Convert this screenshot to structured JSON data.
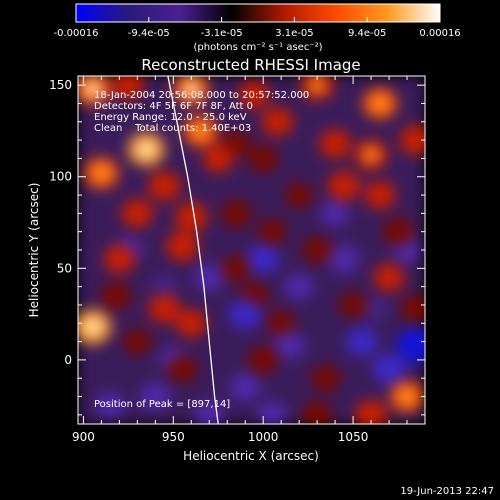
{
  "colorbar": {
    "tick_labels": [
      "-0.00016",
      "-9.4e-05",
      "-3.1e-05",
      "3.1e-05",
      "9.4e-05",
      "0.00016"
    ],
    "unit_label": "(photons cm⁻² s⁻¹ asec⁻²)",
    "colors": [
      "#0000ff",
      "#2a1a7a",
      "#4a2090",
      "#000000",
      "#b01a00",
      "#ff4a00",
      "#ff9a20",
      "#ffffff"
    ]
  },
  "chart_data": {
    "type": "heatmap",
    "title": "Reconstructed RHESSI Image",
    "xlabel": "Heliocentric X (arcsec)",
    "ylabel": "Heliocentric Y (arcsec)",
    "xlim": [
      897,
      1090
    ],
    "ylim": [
      -35,
      155
    ],
    "x_ticks": [
      "900",
      "950",
      "1000",
      "1050"
    ],
    "y_ticks": [
      "0",
      "50",
      "100",
      "150"
    ],
    "info_lines": [
      "18-Jan-2004 20:56:08.000 to 20:57:52.000",
      "Detectors: 4F 5F 6F 7F 8F, Att 0",
      "Energy Range: 12.0 - 25.0 keV",
      "Clean    Total counts: 1.40E+03"
    ],
    "peak_label": "Position of Peak = [897,14]",
    "peak": [
      897,
      14
    ],
    "grid": false,
    "vmin": -0.00016,
    "vmax": 0.00016,
    "limb_curve_x": [
      947,
      952,
      958,
      963,
      967,
      970,
      973,
      975
    ],
    "limb_curve_y": [
      155,
      130,
      100,
      70,
      40,
      10,
      -20,
      -35
    ],
    "blobs": [
      [
        905,
        148,
        0.8
      ],
      [
        925,
        150,
        0.55
      ],
      [
        960,
        148,
        0.75
      ],
      [
        995,
        145,
        0.5
      ],
      [
        1030,
        150,
        0.65
      ],
      [
        1065,
        140,
        0.7
      ],
      [
        1085,
        120,
        0.6
      ],
      [
        1060,
        112,
        0.65
      ],
      [
        1040,
        118,
        0.55
      ],
      [
        1045,
        95,
        0.6
      ],
      [
        1065,
        90,
        0.5
      ],
      [
        1008,
        130,
        0.55
      ],
      [
        1000,
        110,
        0.45
      ],
      [
        985,
        118,
        0.4
      ],
      [
        965,
        125,
        0.7
      ],
      [
        935,
        115,
        0.85
      ],
      [
        910,
        102,
        0.7
      ],
      [
        945,
        95,
        0.6
      ],
      [
        960,
        78,
        0.6
      ],
      [
        930,
        80,
        0.55
      ],
      [
        985,
        80,
        0.45
      ],
      [
        1005,
        70,
        0.35
      ],
      [
        1030,
        60,
        0.4
      ],
      [
        1070,
        45,
        0.5
      ],
      [
        1085,
        28,
        0.45
      ],
      [
        955,
        62,
        0.6
      ],
      [
        920,
        55,
        0.5
      ],
      [
        905,
        18,
        0.9
      ],
      [
        945,
        28,
        0.55
      ],
      [
        930,
        10,
        0.35
      ],
      [
        960,
        20,
        0.5
      ],
      [
        995,
        35,
        0.4
      ],
      [
        1000,
        0,
        0.45
      ],
      [
        1035,
        -10,
        0.4
      ],
      [
        1080,
        -20,
        0.7
      ],
      [
        1060,
        -30,
        0.6
      ],
      [
        1030,
        -30,
        0.45
      ],
      [
        1010,
        20,
        0.35
      ],
      [
        975,
        110,
        0.5
      ],
      [
        1050,
        30,
        0.35
      ],
      [
        955,
        -5,
        0.4
      ],
      [
        1020,
        90,
        0.3
      ],
      [
        1075,
        70,
        0.45
      ],
      [
        918,
        35,
        0.45
      ],
      [
        985,
        50,
        0.35
      ],
      [
        1000,
        55,
        -0.55
      ],
      [
        990,
        25,
        -0.6
      ],
      [
        1045,
        55,
        -0.5
      ],
      [
        1055,
        10,
        -0.55
      ],
      [
        1085,
        8,
        -0.95
      ],
      [
        1070,
        -5,
        -0.6
      ],
      [
        970,
        45,
        -0.45
      ],
      [
        990,
        -15,
        -0.5
      ],
      [
        940,
        -20,
        -0.5
      ],
      [
        925,
        60,
        -0.35
      ],
      [
        1020,
        40,
        -0.4
      ],
      [
        1015,
        8,
        -0.45
      ],
      [
        950,
        0,
        -0.35
      ],
      [
        1005,
        -30,
        -0.4
      ],
      [
        970,
        -30,
        -0.45
      ],
      [
        1040,
        80,
        -0.35
      ],
      [
        1080,
        60,
        -0.35
      ],
      [
        945,
        40,
        -0.3
      ],
      [
        1062,
        28,
        -0.3
      ],
      [
        915,
        -25,
        -0.4
      ]
    ]
  },
  "footer": {
    "timestamp": "19-Jun-2013 22:47"
  }
}
